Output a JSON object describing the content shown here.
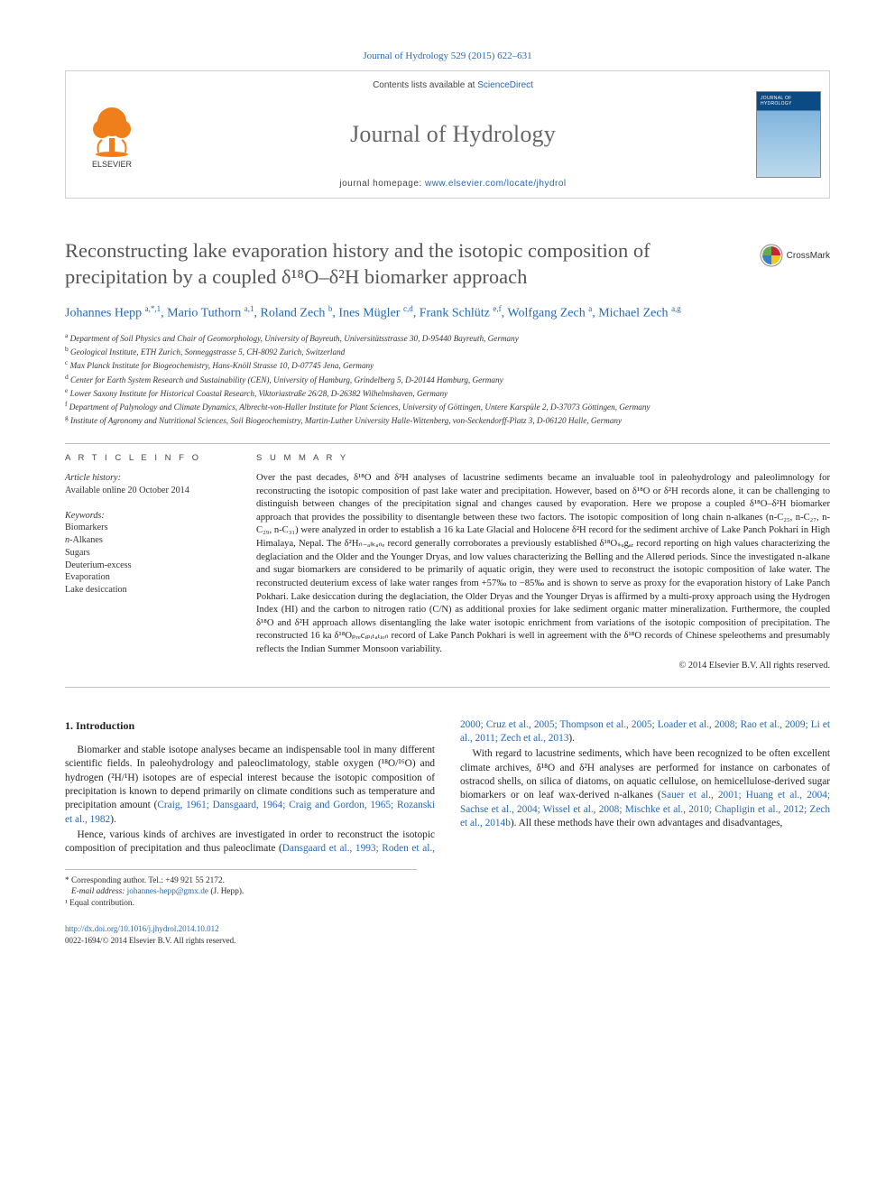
{
  "citation_line": "Journal of Hydrology 529 (2015) 622–631",
  "masthead": {
    "contents_prefix": "Contents lists available at ",
    "contents_link": "ScienceDirect",
    "journal_name": "Journal of Hydrology",
    "homepage_prefix": "journal homepage: ",
    "homepage_url": "www.elsevier.com/locate/jhydrol",
    "publisher_label": "ELSEVIER",
    "cover_title": "JOURNAL OF HYDROLOGY"
  },
  "crossmark": "CrossMark",
  "title": "Reconstructing lake evaporation history and the isotopic composition of precipitation by a coupled δ¹⁸O–δ²H biomarker approach",
  "authors_html": "Johannes Hepp <span class='sup'>a,*,1</span>, Mario Tuthorn <span class='sup'>a,1</span>, Roland Zech <span class='sup'>b</span>, Ines Mügler <span class='sup'>c,d</span>, Frank Schlütz <span class='sup'>e,f</span>, Wolfgang Zech <span class='sup'>a</span>, Michael Zech <span class='sup'>a,g</span>",
  "affiliations": [
    {
      "sup": "a",
      "text": "Department of Soil Physics and Chair of Geomorphology, University of Bayreuth, Universitätsstrasse 30, D-95440 Bayreuth, Germany"
    },
    {
      "sup": "b",
      "text": "Geological Institute, ETH Zurich, Sonneggstrasse 5, CH-8092 Zurich, Switzerland"
    },
    {
      "sup": "c",
      "text": "Max Planck Institute for Biogeochemistry, Hans-Knöll Strasse 10, D-07745 Jena, Germany"
    },
    {
      "sup": "d",
      "text": "Center for Earth System Research and Sustainability (CEN), University of Hamburg, Grindelberg 5, D-20144 Hamburg, Germany"
    },
    {
      "sup": "e",
      "text": "Lower Saxony Institute for Historical Coastal Research, Viktoriastraße 26/28, D-26382 Wilhelmshaven, Germany"
    },
    {
      "sup": "f",
      "text": "Department of Palynology and Climate Dynamics, Albrecht-von-Haller Institute for Plant Sciences, University of Göttingen, Untere Karspüle 2, D-37073 Göttingen, Germany"
    },
    {
      "sup": "g",
      "text": "Institute of Agronomy and Nutritional Sciences, Soil Biogeochemistry, Martin-Luther University Halle-Wittenberg, von-Seckendorff-Platz 3, D-06120 Halle, Germany"
    }
  ],
  "info": {
    "head": "A R T I C L E   I N F O",
    "history_label": "Article history:",
    "history_line": "Available online 20 October 2014",
    "keywords_label": "Keywords:",
    "keywords": [
      "Biomarkers",
      "n-Alkanes",
      "Sugars",
      "Deuterium-excess",
      "Evaporation",
      "Lake desiccation"
    ]
  },
  "summary": {
    "head": "S U M M A R Y",
    "text": "Over the past decades, δ¹⁸O and δ²H analyses of lacustrine sediments became an invaluable tool in paleohydrology and paleolimnology for reconstructing the isotopic composition of past lake water and precipitation. However, based on δ¹⁸O or δ²H records alone, it can be challenging to distinguish between changes of the precipitation signal and changes caused by evaporation. Here we propose a coupled δ¹⁸O–δ²H biomarker approach that provides the possibility to disentangle between these two factors. The isotopic composition of long chain n-alkanes (n-C₂₅, n-C₂₇, n-C₂₉, n-C₃₁) were analyzed in order to establish a 16 ka Late Glacial and Holocene δ²H record for the sediment archive of Lake Panch Pokhari in High Himalaya, Nepal. The δ²Hₙ₋ₐₗₖₐₙₑ record generally corroborates a previously established δ¹⁸Oₛᵤgₐᵣ record reporting on high values characterizing the deglaciation and the Older and the Younger Dryas, and low values characterizing the Bølling and the Allerød periods. Since the investigated n-alkane and sugar biomarkers are considered to be primarily of aquatic origin, they were used to reconstruct the isotopic composition of lake water. The reconstructed deuterium excess of lake water ranges from +57‰ to −85‰ and is shown to serve as proxy for the evaporation history of Lake Panch Pokhari. Lake desiccation during the deglaciation, the Older Dryas and the Younger Dryas is affirmed by a multi-proxy approach using the Hydrogen Index (HI) and the carbon to nitrogen ratio (C/N) as additional proxies for lake sediment organic matter mineralization. Furthermore, the coupled δ¹⁸O and δ²H approach allows disentangling the lake water isotopic enrichment from variations of the isotopic composition of precipitation. The reconstructed 16 ka δ¹⁸Oₚᵣₑcᵢₚᵢₜₐₜᵢₒₙ record of Lake Panch Pokhari is well in agreement with the δ¹⁸O records of Chinese speleothems and presumably reflects the Indian Summer Monsoon variability.",
    "copyright": "© 2014 Elsevier B.V. All rights reserved."
  },
  "intro": {
    "heading": "1. Introduction",
    "para1_pre": "Biomarker and stable isotope analyses became an indispensable tool in many different scientific fields. In paleohydrology and paleoclimatology, stable oxygen (¹⁸O/¹⁶O) and hydrogen (²H/¹H) isotopes are of especial interest because the isotopic composition of precipitation is known to depend primarily on climate conditions such as temperature and precipitation amount (",
    "para1_ref": "Craig, 1961; Dansgaard, 1964; Craig and Gordon, 1965; Rozanski et al., 1982",
    "para1_post": ").",
    "para2_pre": "Hence, various kinds of archives are investigated in order to reconstruct the isotopic composition of precipitation and thus paleoclimate (",
    "para2_ref": "Dansgaard et al., 1993; Roden et al., 2000; Cruz et al., 2005; Thompson et al., 2005; Loader et al., 2008; Rao et al., 2009; Li et al., 2011; Zech et al., 2013",
    "para2_post": ").",
    "para3_pre": "With regard to lacustrine sediments, which have been recognized to be often excellent climate archives, δ¹⁸O and δ²H analyses are performed for instance on carbonates of ostracod shells, on silica of diatoms, on aquatic cellulose, on hemicellulose-derived sugar biomarkers or on leaf wax-derived n-alkanes (",
    "para3_ref": "Sauer et al., 2001; Huang et al., 2004; Sachse et al., 2004; Wissel et al., 2008; Mischke et al., 2010; Chapligin et al., 2012; Zech et al., 2014b",
    "para3_post": "). All these methods have their own advantages and disadvantages,"
  },
  "footnotes": {
    "corr": "* Corresponding author. Tel.: +49 921 55 2172.",
    "email_label": "E-mail address: ",
    "email": "johannes-hepp@gmx.de",
    "email_suffix": " (J. Hepp).",
    "equal": "¹ Equal contribution."
  },
  "doi": {
    "url": "http://dx.doi.org/10.1016/j.jhydrol.2014.10.012",
    "issn_line": "0022-1694/© 2014 Elsevier B.V. All rights reserved."
  },
  "colors": {
    "link": "#2568b4",
    "text": "#2a2a2a",
    "heading_grey": "#555555",
    "rule": "#bfbfbf",
    "elsevier_orange": "#ee7f1a"
  }
}
